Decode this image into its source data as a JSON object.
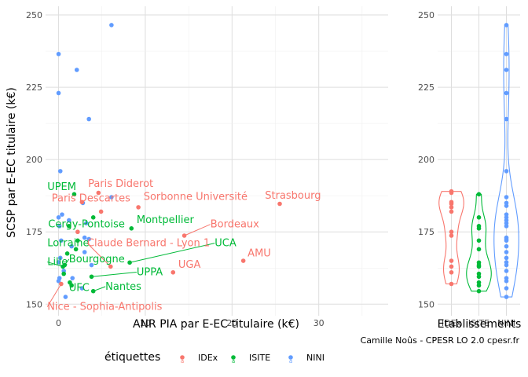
{
  "chart_data": [
    {
      "type": "scatter",
      "xlabel": "ANR PIA par E-EC titulaire (k€)",
      "ylabel": "SCSP par E-EC titulaire (k€)",
      "xlim": [
        -1.5,
        38
      ],
      "ylim": [
        146,
        253
      ],
      "x_ticks": [
        0,
        10,
        20,
        30
      ],
      "y_ticks": [
        150,
        175,
        200,
        225,
        250
      ],
      "grid": true,
      "labeled_points": [
        {
          "label": "Paris Diderot",
          "group": "IDEx",
          "x": 4.6,
          "y": 188.5,
          "lx": 3.4,
          "ly": 190.5
        },
        {
          "label": "UPEM",
          "group": "ISITE",
          "x": 1.8,
          "y": 188.0,
          "lx": -1.3,
          "ly": 189.5
        },
        {
          "label": "Paris Descartes",
          "group": "IDEx",
          "x": 2.7,
          "y": 185.3,
          "lx": -0.8,
          "ly": 185.5
        },
        {
          "label": "Sorbonne Université",
          "group": "IDEx",
          "x": 9.2,
          "y": 183.5,
          "lx": 9.8,
          "ly": 186.0
        },
        {
          "label": "Strasbourg",
          "group": "IDEx",
          "x": 25.5,
          "y": 184.7,
          "lx": 23.8,
          "ly": 186.5
        },
        {
          "label": "Cergy-Pontoise",
          "group": "ISITE",
          "x": 4.0,
          "y": 180.0,
          "lx": -1.2,
          "ly": 176.5
        },
        {
          "label": "Montpellier",
          "group": "ISITE",
          "x": 8.4,
          "y": 176.2,
          "lx": 9.0,
          "ly": 178.0
        },
        {
          "label": "Bordeaux",
          "group": "IDEx",
          "x": 14.5,
          "y": 173.7,
          "lx": 17.5,
          "ly": 176.5,
          "line": true
        },
        {
          "label": "Lorraine",
          "group": "ISITE",
          "x": 2.2,
          "y": 172.0,
          "lx": -1.3,
          "ly": 170.0
        },
        {
          "label": "Claude Bernard - Lyon 1",
          "group": "IDEx",
          "x": 6.0,
          "y": 163.0,
          "lx": 3.3,
          "ly": 170.0,
          "line": true
        },
        {
          "label": "UCA",
          "group": "ISITE",
          "x": 8.2,
          "y": 164.4,
          "lx": 18.0,
          "ly": 170.0,
          "line": true
        },
        {
          "label": "Lille",
          "group": "ISITE",
          "x": 0.5,
          "y": 163.0,
          "lx": -1.3,
          "ly": 163.5,
          "line": true
        },
        {
          "label": "Bourgogne",
          "group": "ISITE",
          "x": 0.7,
          "y": 163.5,
          "lx": 1.2,
          "ly": 164.5,
          "line": true
        },
        {
          "label": "AMU",
          "group": "IDEx",
          "x": 21.3,
          "y": 165.0,
          "lx": 21.8,
          "ly": 166.5
        },
        {
          "label": "UGA",
          "group": "IDEx",
          "x": 13.2,
          "y": 161.0,
          "lx": 13.8,
          "ly": 162.5
        },
        {
          "label": "UPPA",
          "group": "ISITE",
          "x": 3.8,
          "y": 159.5,
          "lx": 9.0,
          "ly": 160.0,
          "line": true
        },
        {
          "label": "UFC",
          "group": "ISITE",
          "x": 1.3,
          "y": 157.5,
          "lx": 1.2,
          "ly": 154.5
        },
        {
          "label": "Nantes",
          "group": "ISITE",
          "x": 4.0,
          "y": 154.5,
          "lx": 5.4,
          "ly": 155.0,
          "line": true
        },
        {
          "label": "Nice - Sophia-Antipolis",
          "group": "IDEx",
          "x": 0.3,
          "y": 157.0,
          "lx": -1.3,
          "ly": 148.0,
          "line": true
        }
      ],
      "points": [
        {
          "group": "NINI",
          "x": 6.1,
          "y": 246.5
        },
        {
          "group": "NINI",
          "x": 0.0,
          "y": 236.5
        },
        {
          "group": "NINI",
          "x": 2.1,
          "y": 231.0
        },
        {
          "group": "NINI",
          "x": 0.0,
          "y": 223.0
        },
        {
          "group": "NINI",
          "x": 3.5,
          "y": 214.0
        },
        {
          "group": "NINI",
          "x": 0.2,
          "y": 196.0
        },
        {
          "group": "NINI",
          "x": 6.1,
          "y": 187.0
        },
        {
          "group": "NINI",
          "x": 2.8,
          "y": 185.0
        },
        {
          "group": "NINI",
          "x": 0.4,
          "y": 181.0
        },
        {
          "group": "NINI",
          "x": 0.0,
          "y": 180.0
        },
        {
          "group": "NINI",
          "x": 1.2,
          "y": 179.0
        },
        {
          "group": "NINI",
          "x": 0.1,
          "y": 177.0
        },
        {
          "group": "NINI",
          "x": 3.2,
          "y": 178.0
        },
        {
          "group": "NINI",
          "x": 3.0,
          "y": 173.0
        },
        {
          "group": "NINI",
          "x": 3.5,
          "y": 172.5
        },
        {
          "group": "NINI",
          "x": 0.3,
          "y": 172.0
        },
        {
          "group": "NINI",
          "x": 1.5,
          "y": 170.0
        },
        {
          "group": "NINI",
          "x": 3.0,
          "y": 168.0
        },
        {
          "group": "NINI",
          "x": 0.2,
          "y": 166.0
        },
        {
          "group": "NINI",
          "x": 0.0,
          "y": 164.5
        },
        {
          "group": "NINI",
          "x": 3.8,
          "y": 163.5
        },
        {
          "group": "NINI",
          "x": 0.6,
          "y": 161.5
        },
        {
          "group": "NINI",
          "x": 0.1,
          "y": 159.0
        },
        {
          "group": "NINI",
          "x": 0.0,
          "y": 158.0
        },
        {
          "group": "NINI",
          "x": 1.6,
          "y": 159.0
        },
        {
          "group": "NINI",
          "x": 2.7,
          "y": 155.5
        },
        {
          "group": "NINI",
          "x": 0.8,
          "y": 152.5
        },
        {
          "group": "IDEx",
          "x": 4.9,
          "y": 182.0
        },
        {
          "group": "IDEx",
          "x": 2.2,
          "y": 175.0
        },
        {
          "group": "ISITE",
          "x": 1.2,
          "y": 177.0
        },
        {
          "group": "ISITE",
          "x": 2.0,
          "y": 169.0
        },
        {
          "group": "ISITE",
          "x": 1.0,
          "y": 167.5
        },
        {
          "group": "ISITE",
          "x": 0.6,
          "y": 160.5
        },
        {
          "group": "ISITE",
          "x": 1.5,
          "y": 156.5
        }
      ]
    },
    {
      "type": "violin",
      "xlabel": "Etablissements",
      "ylim": [
        146,
        253
      ],
      "y_ticks": [
        150,
        175,
        200,
        225,
        250
      ],
      "categories": [
        "IDEx",
        "ISITE",
        "NINI"
      ],
      "series": [
        {
          "name": "IDEx",
          "values": [
            189.0,
            188.5,
            185.3,
            184.7,
            183.5,
            182.0,
            175.0,
            173.7,
            165.0,
            163.0,
            161.0,
            157.0
          ]
        },
        {
          "name": "ISITE",
          "values": [
            188.0,
            180.0,
            177.0,
            176.2,
            172.0,
            169.0,
            164.4,
            163.5,
            163.0,
            160.5,
            159.5,
            157.5,
            156.5,
            154.5
          ]
        },
        {
          "name": "NINI",
          "values": [
            246.5,
            236.5,
            231.0,
            223.0,
            214.0,
            196.0,
            187.0,
            185.0,
            184.0,
            181.0,
            180.0,
            179.0,
            178.0,
            177.0,
            173.0,
            172.5,
            172.0,
            170.0,
            168.0,
            166.0,
            164.5,
            163.5,
            161.5,
            159.0,
            158.0,
            155.5,
            152.5
          ]
        }
      ]
    }
  ],
  "legend": {
    "title": "étiquettes",
    "items": [
      {
        "name": "IDEx",
        "color": "#F8766D"
      },
      {
        "name": "ISITE",
        "color": "#00BA38"
      },
      {
        "name": "NINI",
        "color": "#619CFF"
      }
    ],
    "placement": "bottom"
  },
  "caption": "Camille Noûs - CPESR LO 2.0 cpesr.fr",
  "colors": {
    "IDEx": "#F8766D",
    "ISITE": "#00BA38",
    "NINI": "#619CFF",
    "grid": "#dedede"
  }
}
